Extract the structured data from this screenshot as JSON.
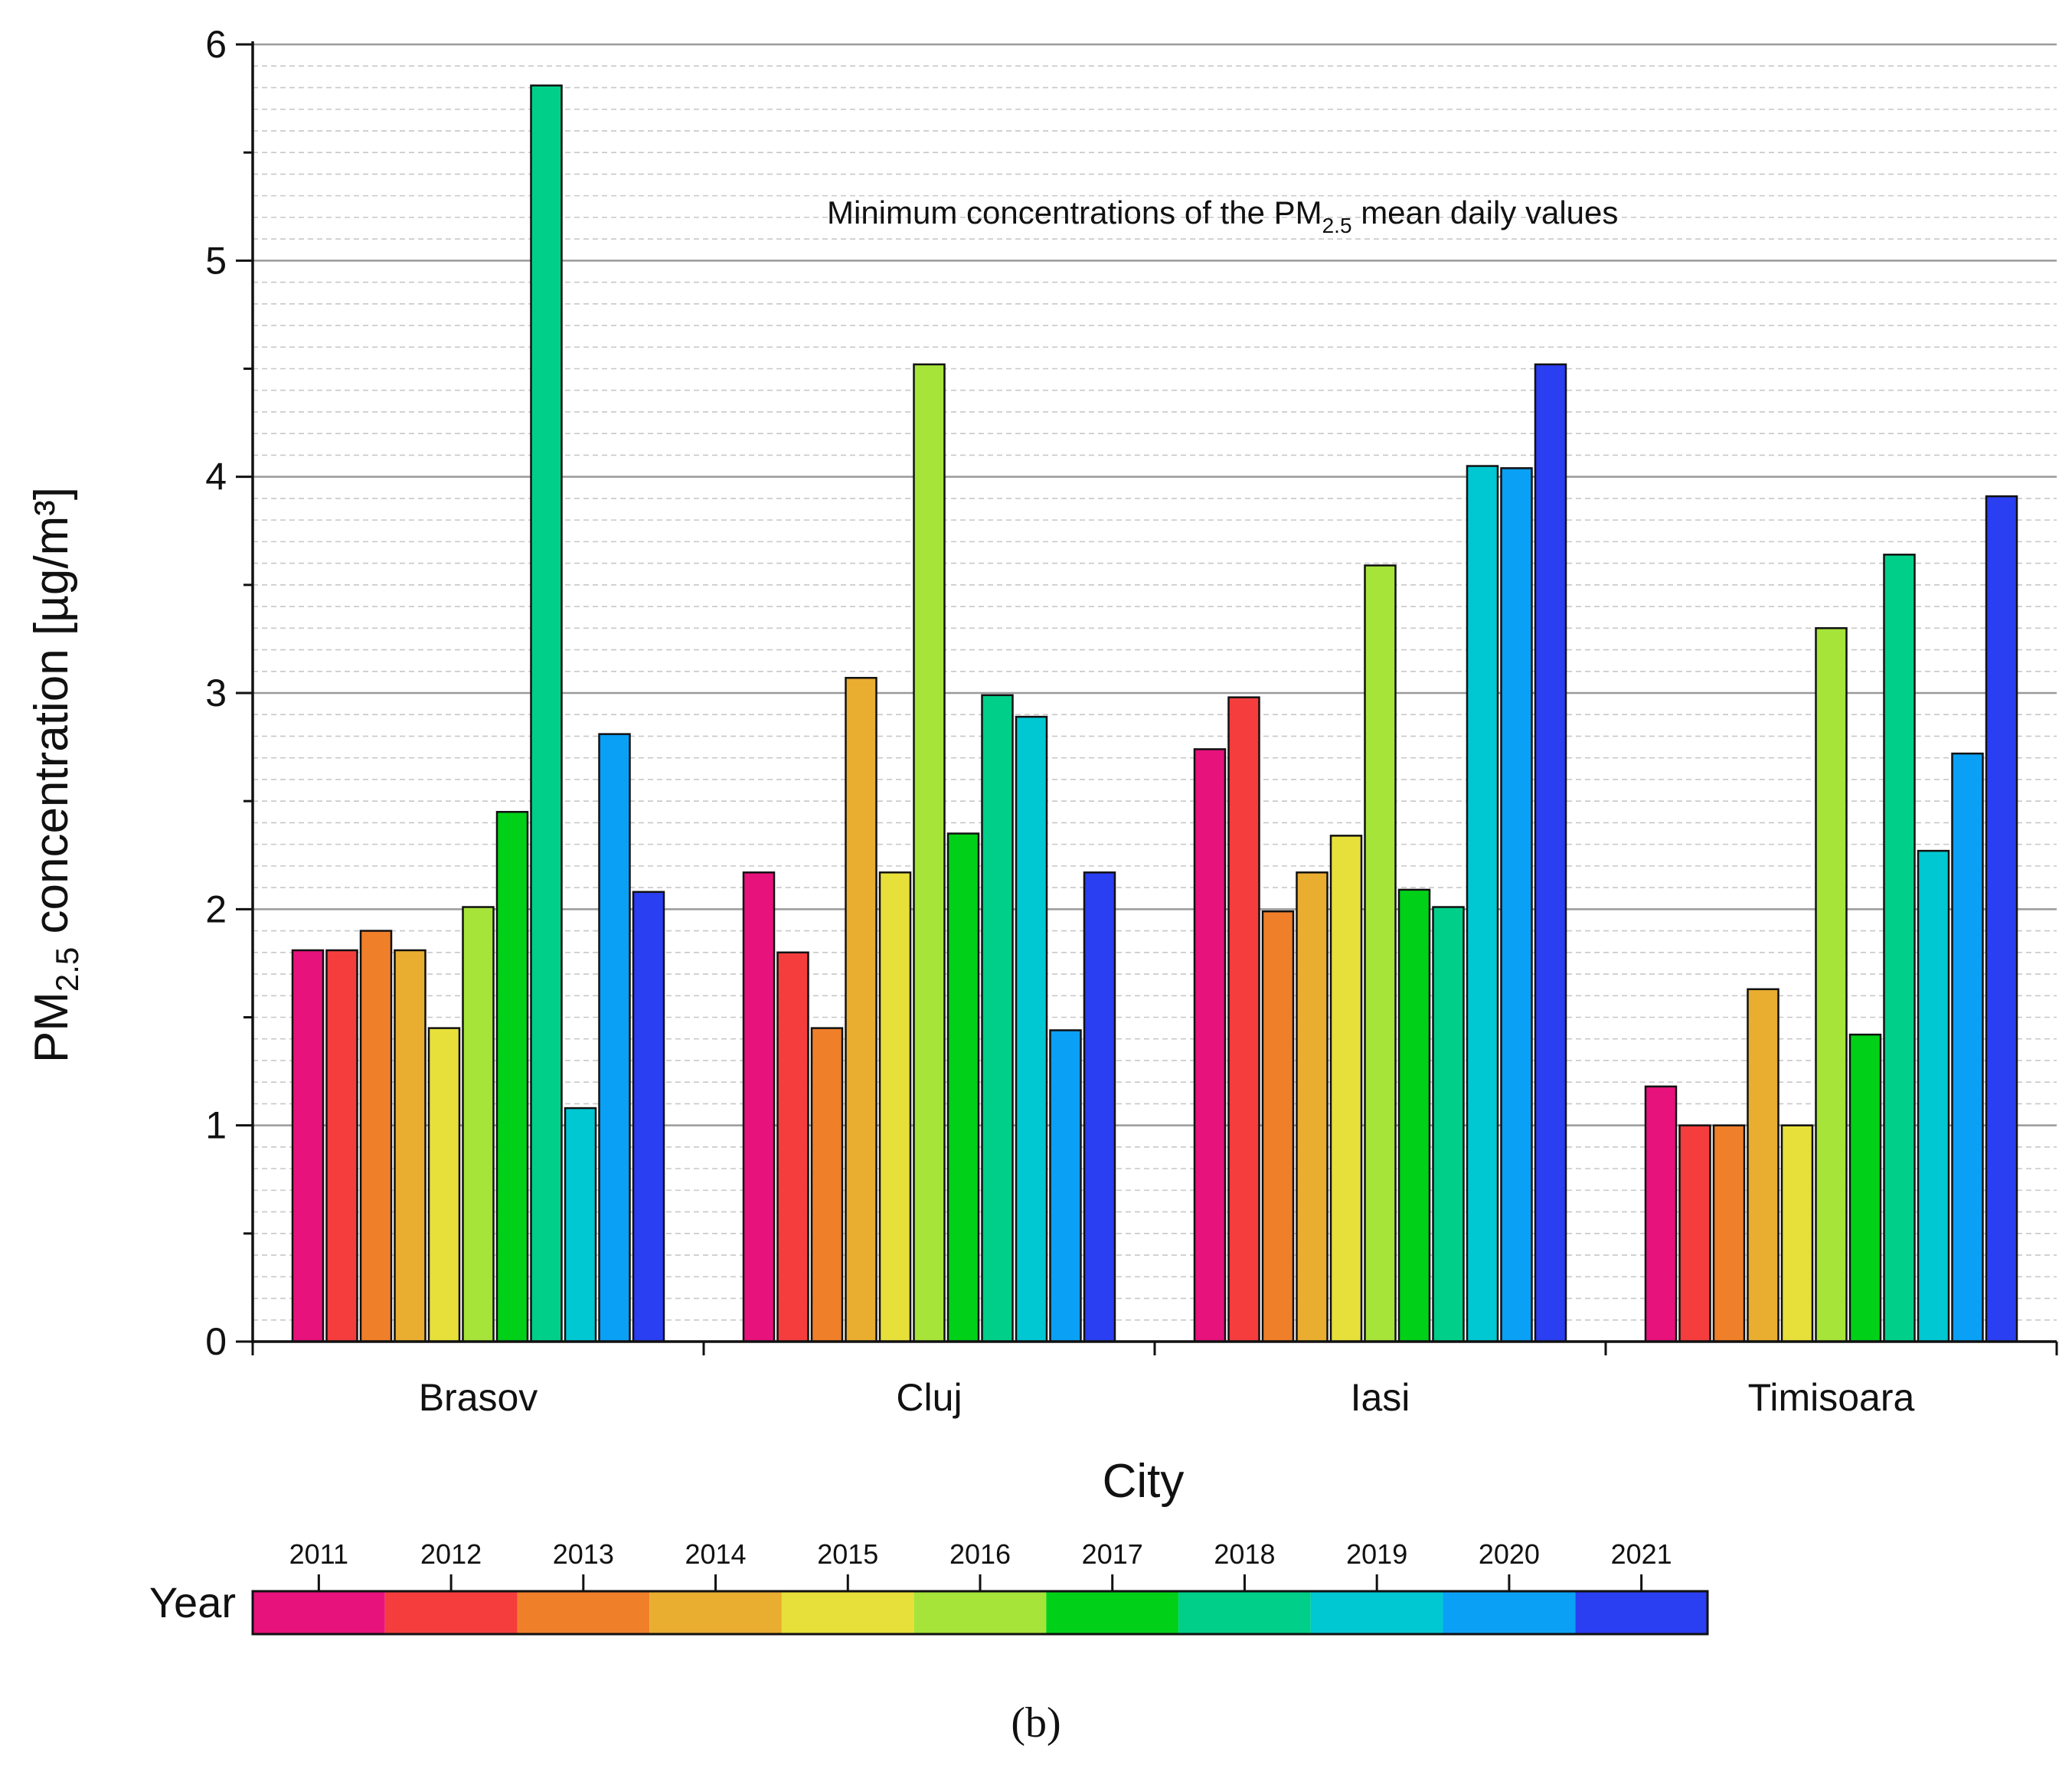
{
  "chart_data": {
    "type": "bar",
    "title": "",
    "annotation": {
      "prefix": "Minimum concentrations of the PM",
      "subscript": "2.5",
      "suffix": " mean daily values"
    },
    "xlabel": "City",
    "ylabel": {
      "prefix": "PM",
      "subscript": "2.5",
      "suffix": " concentration [µg/m³]"
    },
    "ylim": [
      0,
      6
    ],
    "yticks": [
      "0",
      "1",
      "2",
      "3",
      "4",
      "5",
      "6"
    ],
    "grid": true,
    "categories": [
      "Brasov",
      "Cluj",
      "Iasi",
      "Timisoara"
    ],
    "series": [
      {
        "name": "2011",
        "color": "#e8127d",
        "values": [
          1.81,
          2.17,
          2.74,
          1.18
        ]
      },
      {
        "name": "2012",
        "color": "#f53d3d",
        "values": [
          1.81,
          1.8,
          2.98,
          1.0
        ]
      },
      {
        "name": "2013",
        "color": "#f07f2a",
        "values": [
          1.9,
          1.45,
          1.99,
          1.0
        ]
      },
      {
        "name": "2014",
        "color": "#e9ad30",
        "values": [
          1.81,
          3.07,
          2.17,
          1.63
        ]
      },
      {
        "name": "2015",
        "color": "#e8e03a",
        "values": [
          1.45,
          2.17,
          2.34,
          1.0
        ]
      },
      {
        "name": "2016",
        "color": "#a6e43a",
        "values": [
          2.01,
          4.52,
          3.59,
          3.3
        ]
      },
      {
        "name": "2017",
        "color": "#00d118",
        "values": [
          2.45,
          2.35,
          2.09,
          1.42
        ]
      },
      {
        "name": "2018",
        "color": "#00cf8a",
        "values": [
          5.81,
          2.99,
          2.01,
          3.64
        ]
      },
      {
        "name": "2019",
        "color": "#00c8d2",
        "values": [
          1.08,
          2.89,
          4.05,
          2.27
        ]
      },
      {
        "name": "2020",
        "color": "#0aa0f5",
        "values": [
          2.81,
          1.44,
          4.04,
          2.72
        ]
      },
      {
        "name": "2021",
        "color": "#2a3ef2",
        "values": [
          2.08,
          2.17,
          4.52,
          3.91
        ]
      }
    ],
    "legend": {
      "title": "Year",
      "placement": "bottom",
      "style": "colorbar"
    }
  },
  "panel_label": "(b)"
}
